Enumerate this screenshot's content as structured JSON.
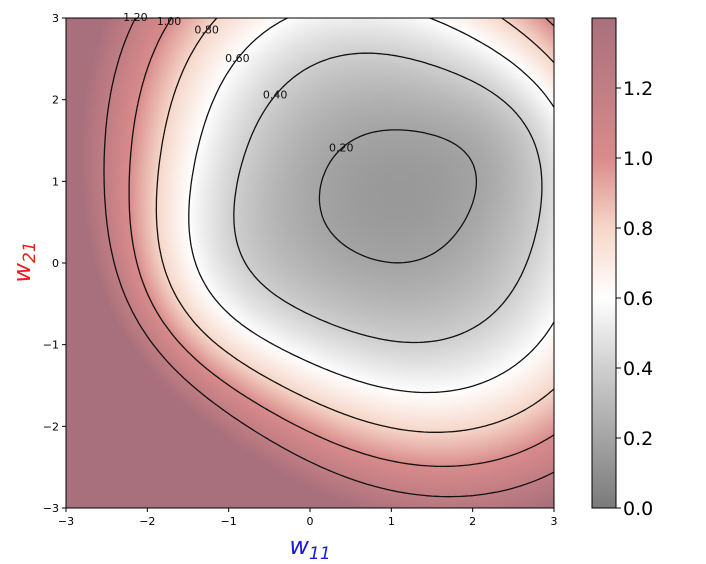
{
  "chart_data": {
    "type": "heatmap",
    "plot_kind": "filled contour with labeled contour lines",
    "x": {
      "label_main": "w",
      "label_sub": "11",
      "label_color": "#1a1adf",
      "lim": [
        -3,
        3
      ],
      "ticks": [
        -3,
        -2,
        -1,
        0,
        1,
        2,
        3
      ],
      "tick_labels": [
        "−3",
        "−2",
        "−1",
        "0",
        "1",
        "2",
        "3"
      ]
    },
    "y": {
      "label_main": "w",
      "label_sub": "21",
      "label_color": "#e8201a",
      "lim": [
        -3,
        3
      ],
      "ticks": [
        -3,
        -2,
        -1,
        0,
        1,
        2,
        3
      ],
      "tick_labels": [
        "−3",
        "−2",
        "−1",
        "0",
        "1",
        "2",
        "3"
      ]
    },
    "z_range": [
      0.0,
      1.4
    ],
    "minimum": {
      "x": 1.0,
      "y": 0.8,
      "value": 0.1
    },
    "contour_levels": [
      0.2,
      0.4,
      0.6,
      0.8,
      1.0,
      1.2
    ],
    "contour_labels": [
      {
        "text": "0.20",
        "level": 0.2
      },
      {
        "text": "0.40",
        "level": 0.4
      },
      {
        "text": "0.60",
        "level": 0.6
      },
      {
        "text": "0.80",
        "level": 0.8
      },
      {
        "text": "1.00",
        "level": 1.0
      },
      {
        "text": "1.20",
        "level": 1.2
      }
    ],
    "colormap": [
      {
        "v": 0.0,
        "color": "#7a7a7a"
      },
      {
        "v": 0.4,
        "color": "#cfcfcf"
      },
      {
        "v": 0.6,
        "color": "#ffffff"
      },
      {
        "v": 0.8,
        "color": "#f6d6c8"
      },
      {
        "v": 1.0,
        "color": "#d98b8b"
      },
      {
        "v": 1.4,
        "color": "#a8707c"
      }
    ],
    "colorbar": {
      "ticks": [
        0.0,
        0.2,
        0.4,
        0.6,
        0.8,
        1.0,
        1.2
      ],
      "tick_labels": [
        "0.0",
        "0.2",
        "0.4",
        "0.6",
        "0.8",
        "1.0",
        "1.2"
      ],
      "range": [
        0.0,
        1.4
      ]
    },
    "grid": false,
    "legend": "none"
  }
}
